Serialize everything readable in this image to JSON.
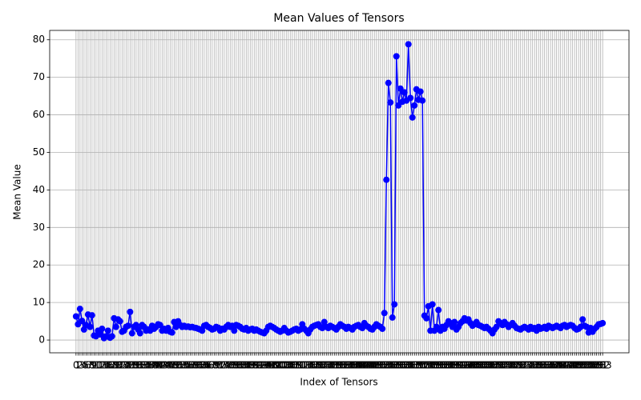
{
  "chart_data": {
    "type": "line",
    "title": "Mean Values of Tensors",
    "x_label": "Index of Tensors",
    "y_label": "Mean Value",
    "categories": [
      0,
      1,
      2,
      3,
      4,
      5,
      6,
      7,
      8,
      9,
      10,
      11,
      12,
      13,
      14,
      15,
      16,
      17,
      18,
      19,
      20,
      21,
      22,
      23,
      24,
      25,
      26,
      27,
      28,
      29,
      30,
      31,
      32,
      33,
      34,
      35,
      36,
      37,
      38,
      39,
      40,
      41,
      42,
      43,
      44,
      45,
      46,
      47,
      48,
      49,
      50,
      51,
      52,
      53,
      54,
      55,
      56,
      57,
      58,
      59,
      60,
      61,
      62,
      63,
      64,
      65,
      66,
      67,
      68,
      69,
      70,
      71,
      72,
      73,
      74,
      75,
      76,
      77,
      78,
      79,
      80,
      81,
      82,
      83,
      84,
      85,
      86,
      87,
      88,
      89,
      90,
      91,
      92,
      93,
      94,
      95,
      96,
      97,
      98,
      99,
      100,
      101,
      102,
      103,
      104,
      105,
      106,
      107,
      108,
      109,
      110,
      111,
      112,
      113,
      114,
      115,
      116,
      117,
      118,
      119,
      120,
      121,
      122,
      123,
      124,
      125,
      126,
      127,
      128,
      129,
      130,
      131,
      132,
      133,
      134,
      135,
      136,
      137,
      138,
      139,
      140,
      141,
      142,
      143,
      144,
      145,
      146,
      147,
      148,
      149,
      150,
      151,
      152,
      153,
      154,
      155,
      156,
      157,
      158,
      159,
      160,
      161,
      162,
      163,
      164,
      165,
      166,
      167,
      168,
      169,
      170,
      171,
      172,
      173,
      174,
      175,
      176,
      177,
      178,
      179,
      180,
      181,
      182,
      183,
      184,
      185,
      186,
      187,
      188,
      189,
      190,
      191,
      192,
      193,
      194,
      195,
      196,
      197,
      198,
      199,
      200,
      201,
      202,
      203,
      204,
      205,
      206,
      207,
      208,
      209,
      210,
      211,
      212,
      213,
      214,
      215,
      216,
      217,
      218,
      219,
      220,
      221,
      222,
      223,
      224,
      225,
      226,
      227,
      228,
      229,
      230,
      231,
      232,
      233,
      234,
      235,
      236,
      237,
      238,
      239,
      240,
      241,
      242,
      243,
      244,
      245,
      246,
      247,
      248,
      249,
      250,
      251,
      252,
      253,
      254,
      255,
      256,
      257,
      258,
      259,
      260,
      261,
      262,
      263
    ],
    "values": [
      6.3,
      4.2,
      8.3,
      5.1,
      2.8,
      4.0,
      6.8,
      3.5,
      6.6,
      1.2,
      1.0,
      2.5,
      1.5,
      3.0,
      0.5,
      1.0,
      2.5,
      0.6,
      1.0,
      5.8,
      3.5,
      5.5,
      5.0,
      2.2,
      2.5,
      3.5,
      3.8,
      7.5,
      1.8,
      3.5,
      4.0,
      2.8,
      1.8,
      4.0,
      3.5,
      2.5,
      2.8,
      2.5,
      3.8,
      3.0,
      3.5,
      4.2,
      4.0,
      2.5,
      3.0,
      2.5,
      3.2,
      2.2,
      2.0,
      4.8,
      3.5,
      5.0,
      4.0,
      3.5,
      3.8,
      3.5,
      3.6,
      3.4,
      3.5,
      3.3,
      3.2,
      3.0,
      2.8,
      2.5,
      3.8,
      4.0,
      3.5,
      3.2,
      2.8,
      3.0,
      3.5,
      3.3,
      2.5,
      3.0,
      2.8,
      3.5,
      4.0,
      3.5,
      3.8,
      2.5,
      4.0,
      3.8,
      3.5,
      3.0,
      2.8,
      3.2,
      2.5,
      2.8,
      3.0,
      2.5,
      2.8,
      2.5,
      2.2,
      2.0,
      1.8,
      2.5,
      3.5,
      3.8,
      3.5,
      3.2,
      2.8,
      2.5,
      2.2,
      2.5,
      3.2,
      2.5,
      2.0,
      2.2,
      2.5,
      2.8,
      3.0,
      2.5,
      2.8,
      4.2,
      3.0,
      2.5,
      1.8,
      2.8,
      3.5,
      3.8,
      4.0,
      4.2,
      3.5,
      3.2,
      4.8,
      3.5,
      3.2,
      3.8,
      3.5,
      3.2,
      2.8,
      3.5,
      4.2,
      3.8,
      3.5,
      3.0,
      3.5,
      3.2,
      2.8,
      3.5,
      3.8,
      4.0,
      3.5,
      3.2,
      4.5,
      3.8,
      3.5,
      3.0,
      2.8,
      3.5,
      4.2,
      3.8,
      3.5,
      3.0,
      7.2,
      42.7,
      68.5,
      63.3,
      6.0,
      9.5,
      75.6,
      62.5,
      67.0,
      63.5,
      66.0,
      63.8,
      78.8,
      64.5,
      59.3,
      62.5,
      66.8,
      64.0,
      66.2,
      63.8,
      6.5,
      5.8,
      9.0,
      2.5,
      9.5,
      2.5,
      3.5,
      8.0,
      2.5,
      3.5,
      3.0,
      4.0,
      5.0,
      4.5,
      3.5,
      4.8,
      2.8,
      3.5,
      4.5,
      5.0,
      5.8,
      5.2,
      5.5,
      4.5,
      3.8,
      4.2,
      4.8,
      4.0,
      3.8,
      3.5,
      3.2,
      3.5,
      3.0,
      2.5,
      1.8,
      2.8,
      3.5,
      5.0,
      4.5,
      4.0,
      4.8,
      4.2,
      3.5,
      4.0,
      4.5,
      3.8,
      3.2,
      3.0,
      2.8,
      3.2,
      3.5,
      3.2,
      2.8,
      3.5,
      3.0,
      3.2,
      2.5,
      3.5,
      3.0,
      3.2,
      3.5,
      3.0,
      3.8,
      3.5,
      3.2,
      3.5,
      3.8,
      3.5,
      3.2,
      3.8,
      4.0,
      3.5,
      3.8,
      4.0,
      3.8,
      3.2,
      2.8,
      3.0,
      3.5,
      5.5,
      3.8,
      3.5,
      2.0,
      3.2,
      2.2,
      3.0,
      3.5,
      4.2,
      4.3,
      4.5
    ],
    "color": "#0000ff",
    "ylim": [
      -3.4,
      82.5
    ],
    "yticks": [
      0,
      10,
      20,
      30,
      40,
      50,
      60,
      70,
      80
    ],
    "grid": true
  }
}
